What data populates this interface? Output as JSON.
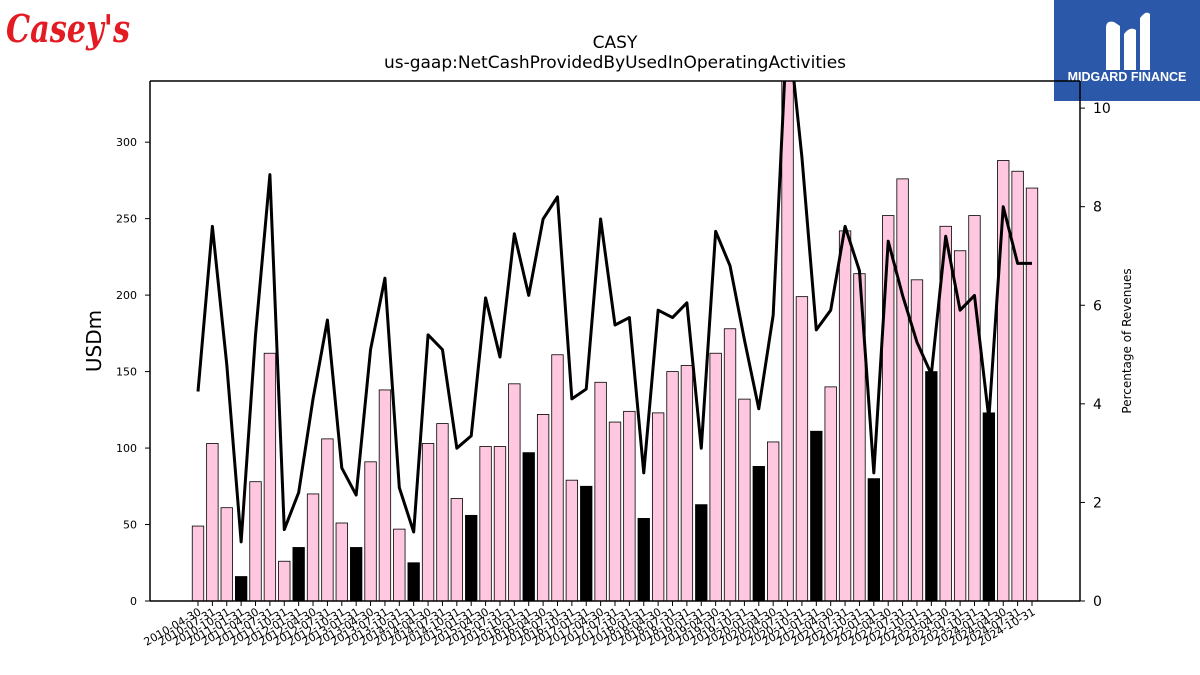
{
  "brand": {
    "left_logo_text": "Casey's",
    "left_logo_color": "#e31b23",
    "right_logo_text": "MIDGARD FINANCE",
    "right_logo_bg": "#2b58a8"
  },
  "chart_data": {
    "type": "bar",
    "title": "CASY",
    "subtitle": "us-gaap:NetCashProvidedByUsedInOperatingActivities",
    "ylabel": "USDm",
    "y2label": "Percentage of Revenues",
    "ylim": [
      0,
      340
    ],
    "y2lim": [
      0,
      10.55
    ],
    "yticks": [
      0,
      50,
      100,
      150,
      200,
      250,
      300
    ],
    "y2ticks": [
      0,
      2,
      4,
      6,
      8,
      10
    ],
    "grid": false,
    "colors": {
      "quarter": "#ffc8e0",
      "annual": "#000000",
      "line": "#000000"
    },
    "categories": [
      "2010-04-30",
      "2010-07-31",
      "2010-10-31",
      "2011-01-31",
      "2011-04-30",
      "2011-07-31",
      "2011-10-31",
      "2012-01-31",
      "2012-04-30",
      "2012-07-31",
      "2012-10-31",
      "2013-01-31",
      "2013-04-30",
      "2013-07-31",
      "2013-10-31",
      "2014-01-31",
      "2014-04-30",
      "2014-07-31",
      "2014-10-31",
      "2015-01-31",
      "2015-04-30",
      "2015-07-31",
      "2015-10-31",
      "2016-01-31",
      "2016-04-30",
      "2016-07-31",
      "2016-10-31",
      "2017-01-31",
      "2017-04-30",
      "2017-07-31",
      "2017-10-31",
      "2018-01-31",
      "2018-04-30",
      "2018-07-31",
      "2018-10-31",
      "2019-01-31",
      "2019-04-30",
      "2019-07-31",
      "2019-10-31",
      "2020-01-31",
      "2020-04-30",
      "2020-07-31",
      "2020-10-31",
      "2021-01-31",
      "2021-04-30",
      "2021-07-31",
      "2021-10-31",
      "2022-01-31",
      "2022-04-30",
      "2022-07-31",
      "2022-10-31",
      "2023-01-31",
      "2023-04-30",
      "2023-07-31",
      "2023-10-31",
      "2024-01-31",
      "2024-04-30",
      "2024-07-31",
      "2024-10-31"
    ],
    "series": [
      {
        "kind": "bar",
        "values": [
          49,
          103,
          61,
          16,
          78,
          162,
          26,
          35,
          70,
          106,
          51,
          35,
          91,
          138,
          47,
          25,
          103,
          116,
          67,
          56,
          101,
          101,
          142,
          97,
          122,
          161,
          79,
          75,
          143,
          117,
          124,
          54,
          123,
          150,
          154,
          63,
          162,
          178,
          132,
          88,
          104,
          345,
          199,
          111,
          140,
          242,
          214,
          80,
          252,
          276,
          210,
          150,
          245,
          229,
          252,
          123,
          288,
          281,
          270
        ],
        "annual": [
          false,
          false,
          false,
          true,
          false,
          false,
          false,
          true,
          false,
          false,
          false,
          true,
          false,
          false,
          false,
          true,
          false,
          false,
          false,
          true,
          false,
          false,
          false,
          true,
          false,
          false,
          false,
          true,
          false,
          false,
          false,
          true,
          false,
          false,
          false,
          true,
          false,
          false,
          false,
          true,
          false,
          false,
          false,
          true,
          false,
          false,
          false,
          true,
          false,
          false,
          false,
          true,
          false,
          false,
          false,
          true,
          false,
          false,
          false
        ]
      },
      {
        "kind": "line",
        "axis": "right",
        "values": [
          4.25,
          7.6,
          4.8,
          1.2,
          5.4,
          8.65,
          1.45,
          2.2,
          4.1,
          5.7,
          2.7,
          2.15,
          5.1,
          6.55,
          2.3,
          1.4,
          5.4,
          5.1,
          3.1,
          3.35,
          6.15,
          4.95,
          7.45,
          6.2,
          7.75,
          8.2,
          4.1,
          4.3,
          7.75,
          5.6,
          5.75,
          2.6,
          5.9,
          5.75,
          6.05,
          3.1,
          7.5,
          6.8,
          5.3,
          3.9,
          5.8,
          11.8,
          9.0,
          5.5,
          5.9,
          7.6,
          6.7,
          2.6,
          7.3,
          6.2,
          5.25,
          4.6,
          7.4,
          5.9,
          6.2,
          3.7,
          8.0,
          6.85,
          6.85
        ]
      }
    ]
  }
}
